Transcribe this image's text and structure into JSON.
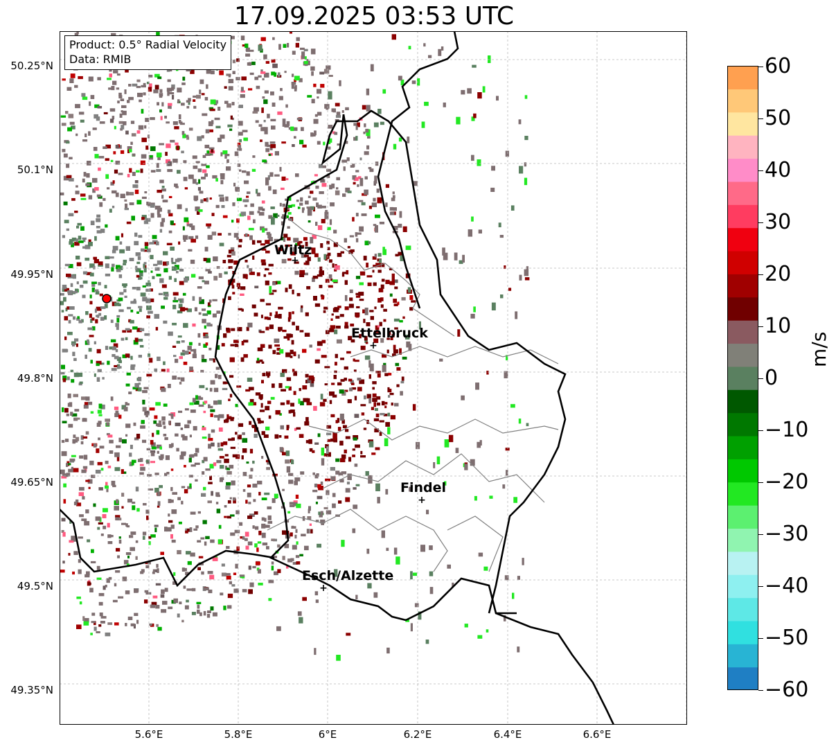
{
  "title": "17.09.2025 03:53 UTC",
  "info": {
    "product": "Product: 0.5° Radial Velocity",
    "source": "Data: RMIB"
  },
  "axes": {
    "lat_labels": [
      "50.25°N",
      "50.1°N",
      "49.95°N",
      "49.8°N",
      "49.65°N",
      "49.5°N",
      "49.35°N"
    ],
    "lon_labels": [
      "5.6°E",
      "5.8°E",
      "6°E",
      "6.2°E",
      "6.4°E",
      "6.6°E"
    ]
  },
  "cities": [
    {
      "name": "Wiltz"
    },
    {
      "name": "Ettelbruck"
    },
    {
      "name": "Findel"
    },
    {
      "name": "Esch/Alzette"
    }
  ],
  "colorbar": {
    "unit": "m/s",
    "ticks": [
      "60",
      "50",
      "40",
      "30",
      "20",
      "10",
      "0",
      "−10",
      "−20",
      "−30",
      "−40",
      "−50",
      "−60"
    ],
    "min": -60,
    "max": 60,
    "colors": [
      "#1f7fc4",
      "#28b4d4",
      "#30e0e0",
      "#5ee8e6",
      "#8ef0f0",
      "#b8f2f2",
      "#90f4b0",
      "#5cf070",
      "#22e822",
      "#00c800",
      "#00a000",
      "#007800",
      "#005800",
      "#5a8060",
      "#808078",
      "#8a5a60",
      "#700000",
      "#a00000",
      "#d00000",
      "#f00010",
      "#ff3c60",
      "#ff6a88",
      "#ff8cc8",
      "#ffb4c0",
      "#ffe6a0",
      "#ffc878",
      "#ffa050"
    ]
  },
  "grid": true,
  "radar_site": "red marker"
}
